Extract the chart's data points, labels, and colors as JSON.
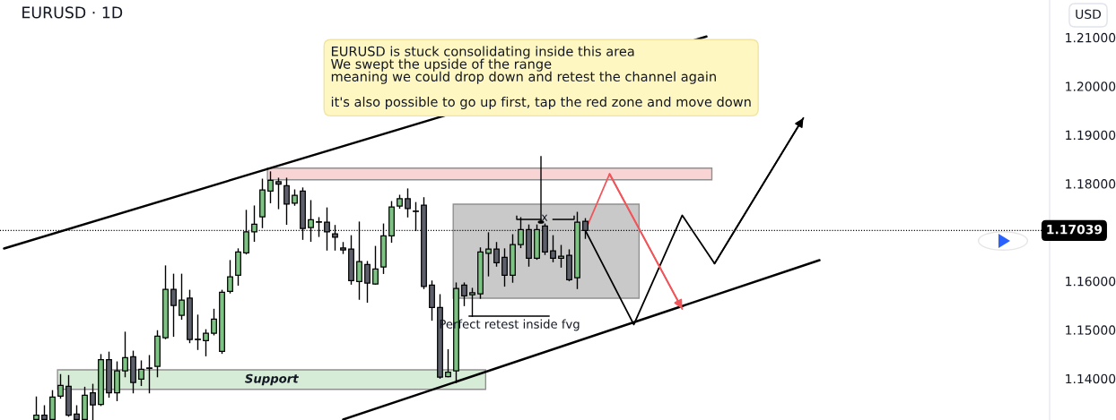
{
  "chart_data": {
    "type": "candlestick",
    "title": "EURUSD · 1D",
    "categories": [
      null,
      null,
      null,
      null,
      null,
      null,
      null,
      null,
      null,
      null,
      null,
      null,
      null,
      null,
      null,
      null,
      null,
      null,
      null,
      null,
      null,
      null,
      null,
      null,
      null,
      null,
      null,
      null,
      null,
      null,
      null,
      null,
      null,
      null,
      null,
      null,
      null,
      null,
      null,
      null,
      null,
      null,
      null,
      null,
      null,
      null,
      null,
      null,
      null,
      null,
      null,
      null,
      null,
      null,
      null,
      null,
      null,
      null,
      null,
      null,
      null,
      null,
      null,
      null,
      null,
      null,
      null,
      null,
      null,
      null,
      null,
      null,
      null,
      null,
      null,
      null,
      null,
      null,
      null,
      null,
      null,
      null,
      null,
      null,
      null,
      null,
      null,
      null,
      null,
      null,
      null,
      null,
      null,
      null,
      null,
      null,
      null,
      null,
      null,
      null,
      null,
      null,
      null,
      null,
      null,
      null,
      null,
      null,
      null,
      null,
      null,
      null,
      null,
      null,
      null,
      null,
      null,
      null,
      null,
      null,
      null,
      null,
      null,
      null,
      null,
      null,
      null,
      null,
      null,
      null
    ],
    "ohlc": [
      null,
      null,
      null,
      null,
      [
        1.1316,
        1.1362,
        1.1316,
        1.1325
      ],
      [
        1.1325,
        1.1344,
        1.1316,
        1.1316
      ],
      [
        1.1316,
        1.1375,
        1.1316,
        1.1362
      ],
      [
        1.1364,
        1.1408,
        1.136,
        1.1386
      ],
      [
        1.1384,
        1.1406,
        1.1323,
        1.1325
      ],
      [
        1.1327,
        1.1344,
        1.1316,
        1.1316
      ],
      [
        1.1316,
        1.1382,
        1.1316,
        1.1366
      ],
      [
        1.1371,
        1.1388,
        1.1316,
        1.1346
      ],
      [
        1.1347,
        1.1449,
        1.1345,
        1.1439
      ],
      [
        1.1439,
        1.1454,
        1.1362,
        1.1371
      ],
      [
        1.1371,
        1.1434,
        1.1355,
        1.1416
      ],
      [
        1.1416,
        1.1495,
        1.1404,
        1.1443
      ],
      [
        1.1445,
        1.1456,
        1.1371,
        1.1392
      ],
      [
        1.1399,
        1.1436,
        1.1386,
        1.1419
      ],
      [
        1.1421,
        1.1447,
        1.1371,
        1.1421
      ],
      [
        1.1425,
        1.1498,
        1.1404,
        1.1487
      ],
      [
        1.1484,
        1.1631,
        1.1482,
        1.1583
      ],
      [
        1.1583,
        1.1614,
        1.1487,
        1.155
      ],
      [
        1.153,
        1.1614,
        1.1522,
        1.1561
      ],
      [
        1.1565,
        1.1581,
        1.1474,
        1.148
      ],
      [
        1.148,
        1.153,
        1.146,
        1.148
      ],
      [
        1.1478,
        1.15,
        1.1447,
        1.1493
      ],
      [
        1.1493,
        1.1542,
        1.149,
        1.1522
      ],
      [
        1.1456,
        1.1581,
        1.1452,
        1.1577
      ],
      [
        1.1579,
        1.1642,
        1.1576,
        1.1609
      ],
      [
        1.1612,
        1.1666,
        1.1592,
        1.166
      ],
      [
        1.1658,
        1.1745,
        1.1656,
        1.1701
      ],
      [
        1.1701,
        1.1754,
        1.1682,
        1.1717
      ],
      [
        1.1732,
        1.1809,
        1.171,
        1.1787
      ],
      [
        1.1785,
        1.1824,
        1.1761,
        1.1807
      ],
      [
        1.1804,
        1.1811,
        1.1749,
        1.1799
      ],
      [
        1.1796,
        1.1811,
        1.1717,
        1.1758
      ],
      [
        1.176,
        1.1787,
        1.1756,
        1.1776
      ],
      [
        1.1785,
        1.1791,
        1.1686,
        1.1708
      ],
      [
        1.171,
        1.1765,
        1.1682,
        1.1726
      ],
      [
        1.1721,
        1.173,
        1.1692,
        1.1721
      ],
      [
        1.1721,
        1.175,
        1.1664,
        1.1701
      ],
      [
        1.1697,
        1.1714,
        1.1664,
        1.169
      ],
      [
        1.1668,
        1.1679,
        1.1657,
        1.1664
      ],
      [
        1.1666,
        1.1693,
        1.1594,
        1.1601
      ],
      [
        1.1599,
        1.1721,
        1.1563,
        1.164
      ],
      [
        1.1634,
        1.164,
        1.1557,
        1.1596
      ],
      [
        1.1594,
        1.1671,
        1.1594,
        1.1625
      ],
      [
        1.1629,
        1.1717,
        1.1616,
        1.1693
      ],
      [
        1.1693,
        1.1763,
        1.168,
        1.1752
      ],
      [
        1.1754,
        1.1776,
        1.175,
        1.1769
      ],
      [
        1.1769,
        1.1789,
        1.1732,
        1.1749
      ],
      [
        1.1743,
        1.1761,
        1.1704,
        1.1743
      ],
      [
        1.1756,
        1.1771,
        1.1585,
        1.1589
      ],
      [
        1.1592,
        1.16,
        1.152,
        1.1546
      ],
      [
        1.1546,
        1.1572,
        1.1401,
        1.1403
      ],
      [
        1.1404,
        1.1459,
        1.1404,
        1.1413
      ],
      [
        1.1416,
        1.1596,
        1.1392,
        1.1585
      ],
      [
        1.1592,
        1.1596,
        1.155,
        1.157
      ],
      [
        1.1572,
        1.1585,
        1.1528,
        1.1576
      ],
      [
        1.1574,
        1.1668,
        1.1565,
        1.166
      ],
      [
        1.1657,
        1.1699,
        1.1611,
        1.1666
      ],
      [
        1.1666,
        1.1679,
        1.1631,
        1.1638
      ],
      [
        1.1649,
        1.1666,
        1.159,
        1.1612
      ],
      [
        1.1612,
        1.1695,
        1.1598,
        1.1675
      ],
      [
        1.1675,
        1.173,
        1.1669,
        1.1706
      ],
      [
        1.1706,
        1.1715,
        1.1631,
        1.1647
      ],
      [
        1.1647,
        1.1715,
        1.1645,
        1.1706
      ],
      [
        1.1713,
        1.1717,
        1.1655,
        1.166
      ],
      [
        1.1662,
        1.1693,
        1.164,
        1.1647
      ],
      [
        1.1647,
        1.1673,
        1.1629,
        1.1651
      ],
      [
        1.1653,
        1.1664,
        1.1601,
        1.1603
      ],
      [
        1.1607,
        1.1741,
        1.1585,
        1.1721
      ],
      [
        1.1723,
        1.1728,
        1.1688,
        1.1704
      ],
      null,
      null,
      null,
      null,
      null,
      null,
      null,
      null,
      null,
      null,
      null,
      null,
      null,
      null,
      null,
      null,
      null,
      null,
      null,
      null,
      null,
      null,
      null,
      null,
      null,
      null,
      null,
      null,
      null,
      null,
      null,
      null,
      null,
      null,
      null,
      null,
      null,
      null,
      null,
      null,
      null,
      null,
      null,
      null,
      null,
      null,
      null,
      null,
      null,
      null,
      null,
      null,
      null,
      null,
      null,
      null,
      null
    ],
    "colors": [
      null,
      null,
      null,
      null,
      "#7dc383",
      "#5d606b",
      "#7dc383",
      "#7dc383",
      "#5d606b",
      "#5d606b",
      "#7dc383",
      "#5d606b",
      "#7dc383",
      "#5d606b",
      "#7dc383",
      "#7dc383",
      "#5d606b",
      "#7dc383",
      "#5d606b",
      "#7dc383",
      "#7dc383",
      "#5d606b",
      "#7dc383",
      "#5d606b",
      "#5d606b",
      "#7dc383",
      "#7dc383",
      "#7dc383",
      "#7dc383",
      "#7dc383",
      "#7dc383",
      "#7dc383",
      "#7dc383",
      "#7dc383",
      "#5d606b",
      "#5d606b",
      "#7dc383",
      "#5d606b",
      "#7dc383",
      "#5d606b",
      "#5d606b",
      "#5d606b",
      "#5d606b",
      "#5d606b",
      "#7dc383",
      "#5d606b",
      "#7dc383",
      "#7dc383",
      "#7dc383",
      "#7dc383",
      "#5d606b",
      "#5d606b",
      "#5d606b",
      "#5d606b",
      "#5d606b",
      "#7dc383",
      "#7dc383",
      "#5d606b",
      "#7dc383",
      "#7dc383",
      "#7dc383",
      "#5d606b",
      "#5d606b",
      "#7dc383",
      "#7dc383",
      "#5d606b",
      "#7dc383",
      "#5d606b",
      "#5d606b",
      "#7dc383",
      "#5d606b",
      "#7dc383",
      "#5d606b",
      null,
      null,
      null,
      null,
      null,
      null,
      null,
      null,
      null,
      null,
      null,
      null,
      null,
      null,
      null,
      null,
      null,
      null,
      null,
      null,
      null,
      null,
      null,
      null,
      null,
      null,
      null,
      null,
      null,
      null,
      null,
      null,
      null,
      null,
      null,
      null,
      null,
      null,
      null,
      null,
      null,
      null,
      null,
      null,
      null,
      null,
      null,
      null,
      null,
      null,
      null,
      null,
      null,
      null,
      null,
      null,
      null
    ],
    "series": [
      {
        "type": "line",
        "color": "#000000",
        "values": [
          1.1667,
          null,
          null,
          null,
          null,
          null,
          null,
          null,
          null,
          null,
          null,
          null,
          null,
          null,
          null,
          null,
          null,
          null,
          null,
          null,
          null,
          null,
          null,
          null,
          null,
          null,
          null,
          null,
          null,
          null,
          null,
          null,
          null,
          null,
          null,
          null,
          null,
          null,
          null,
          null,
          null,
          null,
          null,
          null,
          null,
          null,
          null,
          null,
          null,
          null,
          null,
          null,
          null,
          null,
          null,
          null,
          null,
          null,
          null,
          null,
          null,
          null,
          null,
          null,
          null,
          null,
          null,
          null,
          null,
          null,
          null,
          null,
          null,
          null,
          null,
          null,
          null,
          null,
          null,
          null,
          null,
          null,
          null,
          null,
          null,
          null,
          null,
          1.2102,
          null,
          null,
          null,
          null,
          null,
          null,
          null,
          null,
          null,
          null,
          null,
          null,
          null,
          null,
          null,
          null,
          null,
          null,
          null,
          null,
          null,
          null,
          null,
          null,
          null,
          null,
          null,
          null,
          null,
          null,
          null,
          null,
          null,
          null,
          null,
          null,
          null,
          null,
          null,
          null,
          null,
          null
        ]
      },
      {
        "type": "line",
        "color": "#000000",
        "values": [
          null,
          null,
          null,
          null,
          null,
          null,
          null,
          null,
          null,
          null,
          null,
          null,
          null,
          null,
          null,
          null,
          null,
          null,
          null,
          null,
          null,
          null,
          null,
          null,
          null,
          null,
          null,
          null,
          null,
          null,
          null,
          null,
          null,
          null,
          null,
          null,
          null,
          null,
          null,
          null,
          null,
          null,
          1.1316,
          null,
          null,
          null,
          null,
          null,
          null,
          null,
          null,
          null,
          null,
          null,
          null,
          null,
          null,
          null,
          null,
          null,
          null,
          null,
          null,
          null,
          null,
          null,
          null,
          null,
          null,
          null,
          null,
          null,
          null,
          null,
          null,
          null,
          null,
          null,
          null,
          null,
          null,
          null,
          null,
          null,
          null,
          null,
          null,
          null,
          null,
          null,
          null,
          null,
          null,
          null,
          null,
          null,
          null,
          null,
          null,
          null,
          null,
          1.1643,
          null,
          null,
          null,
          null,
          null,
          null,
          null,
          null,
          null,
          null,
          null,
          null,
          null,
          null,
          null,
          null,
          null,
          null,
          null,
          null,
          null,
          null,
          null,
          null,
          null,
          null,
          null,
          null
        ]
      },
      {
        "type": "line",
        "color": "#000000",
        "values": [
          null,
          null,
          null,
          null,
          null,
          null,
          null,
          null,
          null,
          null,
          null,
          null,
          null,
          null,
          null,
          null,
          null,
          null,
          null,
          null,
          null,
          null,
          null,
          null,
          null,
          null,
          null,
          null,
          null,
          null,
          null,
          null,
          null,
          null,
          null,
          null,
          null,
          null,
          null,
          null,
          null,
          null,
          null,
          null,
          null,
          null,
          null,
          null,
          null,
          null,
          null,
          null,
          null,
          null,
          null,
          null,
          null,
          null,
          null,
          null,
          null,
          null,
          null,
          null,
          null,
          null,
          null,
          null,
          null,
          null,
          null,
          null,
          1.1704,
          null,
          null,
          null,
          null,
          null,
          1.1511,
          null,
          null,
          null,
          null,
          null,
          1.1735,
          null,
          null,
          null,
          1.1636,
          null,
          null,
          null,
          null,
          null,
          null,
          null,
          null,
          null,
          null,
          1.1935,
          null,
          null,
          null,
          null,
          null,
          null,
          null,
          null,
          null,
          null,
          null,
          null,
          null,
          null,
          null,
          null,
          null,
          null,
          null,
          null,
          null,
          null,
          null,
          null,
          null,
          null,
          null,
          null,
          null,
          null
        ]
      },
      {
        "type": "line",
        "color": "#f0555a",
        "values": [
          null,
          null,
          null,
          null,
          null,
          null,
          null,
          null,
          null,
          null,
          null,
          null,
          null,
          null,
          null,
          null,
          null,
          null,
          null,
          null,
          null,
          null,
          null,
          null,
          null,
          null,
          null,
          null,
          null,
          null,
          null,
          null,
          null,
          null,
          null,
          null,
          null,
          null,
          null,
          null,
          null,
          null,
          null,
          null,
          null,
          null,
          null,
          null,
          null,
          null,
          null,
          null,
          null,
          null,
          null,
          null,
          null,
          null,
          null,
          null,
          null,
          null,
          null,
          null,
          null,
          null,
          null,
          null,
          null,
          null,
          null,
          null,
          1.1704,
          null,
          null,
          1.182,
          null,
          null,
          null,
          null,
          null,
          null,
          null,
          null,
          1.1543,
          null,
          null,
          null,
          null,
          null,
          null,
          null,
          null,
          null,
          null,
          null,
          null,
          null,
          null,
          null,
          null,
          null,
          null,
          null,
          null,
          null,
          null,
          null,
          null,
          null,
          null,
          null,
          null,
          null,
          null,
          null,
          null,
          null,
          null,
          null,
          null,
          null,
          null,
          null,
          null,
          null,
          null,
          null,
          null,
          null
        ]
      }
    ],
    "ylim": [
      1.1315,
      1.2177
    ],
    "yticks": [
      {
        "value": 1.14,
        "label": "1.14000"
      },
      {
        "value": 1.15,
        "label": "1.15000"
      },
      {
        "value": 1.16,
        "label": "1.16000"
      },
      {
        "value": 1.18,
        "label": "1.18000"
      },
      {
        "value": 1.19,
        "label": "1.19000"
      },
      {
        "value": 1.2,
        "label": "1.20000"
      },
      {
        "value": 1.21,
        "label": "1.21000"
      }
    ],
    "tick_labels": "y",
    "bands": [
      {
        "axis": "y",
        "from": 1.1808,
        "to": 1.1832,
        "color": "#f9d4d4"
      },
      {
        "axis": "y",
        "from": 1.1565,
        "to": 1.1758,
        "color": "#c9c9c9"
      },
      {
        "axis": "y",
        "from": 1.1378,
        "to": 1.1418,
        "label": "Support",
        "color": "#d6ecd6"
      }
    ],
    "ref_lines": [
      {
        "axis": "y",
        "value": 1.17039,
        "label": "1.17039",
        "color": "#000000",
        "line_style": "dotted"
      }
    ],
    "annotations": [
      "EURUSD is stuck consolidating inside this area\nWe swept the upside of the range\nmeaning we could drop down and retest the channel again\n\nit's also possible to go up first, tap the red zone and move down",
      "Perfect retest inside fvg",
      "x",
      "USD"
    ]
  }
}
